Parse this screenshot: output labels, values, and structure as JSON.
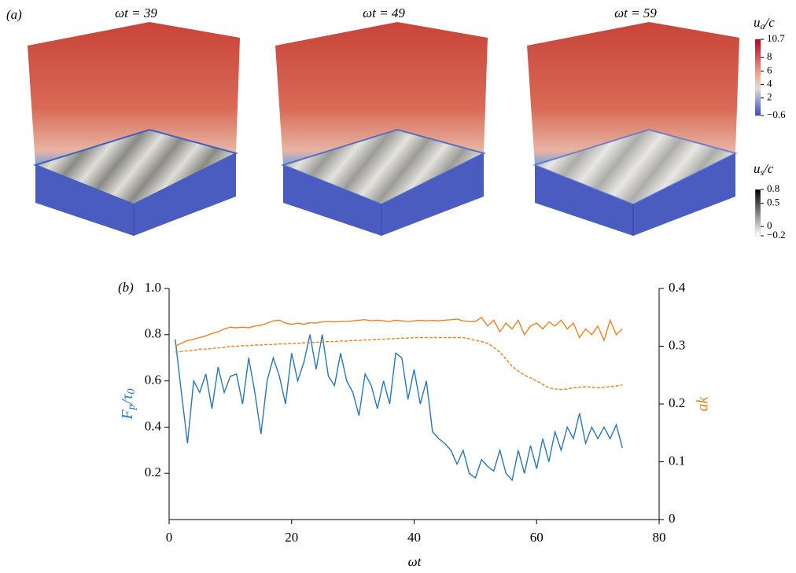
{
  "panel_a": {
    "label": "(a)",
    "titles": [
      "ωt = 39",
      "ωt = 49",
      "ωt = 59"
    ],
    "colorbar_air": {
      "label": {
        "main": "u",
        "sub": "a",
        "rest": "/c"
      },
      "lim": [
        -0.6,
        10.7
      ],
      "ticks": [
        {
          "value": 10.7,
          "label": "10.7"
        },
        8,
        6,
        4,
        2,
        {
          "value": -0.6,
          "label": "−0.6"
        }
      ]
    },
    "colorbar_surface": {
      "label": {
        "main": "u",
        "sub": "s",
        "rest": "/c"
      },
      "lim": [
        -0.2,
        0.8
      ],
      "ticks": [
        0.8,
        0.5,
        0,
        {
          "value": -0.2,
          "label": "−0.2"
        }
      ]
    }
  },
  "chart_data": {
    "type": "line",
    "panel_label": "(b)",
    "xlabel": "ωt",
    "ylabel": {
      "main": "F",
      "sub": "p",
      "rest": "/τ",
      "sub2": "0"
    },
    "y2label": "ak",
    "xlim": [
      0,
      80
    ],
    "xticks": [
      0,
      20,
      40,
      60,
      80
    ],
    "ylim": [
      0,
      1
    ],
    "yticks": [
      0.2,
      0.4,
      0.6,
      0.8,
      {
        "value": 1,
        "label": "1.0"
      }
    ],
    "y2lim": [
      0,
      0.4
    ],
    "y2ticks": [
      0,
      0.1,
      0.2,
      0.3,
      0.4
    ],
    "x": [
      1,
      2,
      3,
      4,
      5,
      6,
      7,
      8,
      9,
      10,
      11,
      12,
      13,
      14,
      15,
      16,
      17,
      18,
      19,
      20,
      21,
      22,
      23,
      24,
      25,
      26,
      27,
      28,
      29,
      30,
      31,
      32,
      33,
      34,
      35,
      36,
      37,
      38,
      39,
      40,
      41,
      42,
      43,
      44,
      45,
      46,
      47,
      48,
      49,
      50,
      51,
      52,
      53,
      54,
      55,
      56,
      57,
      58,
      59,
      60,
      61,
      62,
      63,
      64,
      65,
      66,
      67,
      68,
      69,
      70,
      71,
      72,
      73,
      74
    ],
    "series": [
      {
        "color": "#2878b5",
        "values": [
          0.78,
          0.55,
          0.33,
          0.6,
          0.55,
          0.63,
          0.48,
          0.66,
          0.55,
          0.62,
          0.63,
          0.5,
          0.7,
          0.55,
          0.37,
          0.6,
          0.7,
          0.62,
          0.5,
          0.72,
          0.6,
          0.68,
          0.8,
          0.65,
          0.8,
          0.62,
          0.58,
          0.72,
          0.6,
          0.55,
          0.45,
          0.63,
          0.58,
          0.48,
          0.6,
          0.5,
          0.72,
          0.7,
          0.52,
          0.65,
          0.5,
          0.6,
          0.38,
          0.35,
          0.33,
          0.3,
          0.24,
          0.3,
          0.2,
          0.18,
          0.26,
          0.23,
          0.21,
          0.3,
          0.2,
          0.17,
          0.3,
          0.2,
          0.32,
          0.22,
          0.35,
          0.25,
          0.38,
          0.3,
          0.4,
          0.35,
          0.46,
          0.33,
          0.4,
          0.35,
          0.4,
          0.35,
          0.41,
          0.31
        ]
      },
      {
        "color": "#f08020",
        "axis": "y2",
        "values": [
          0.3,
          0.305,
          0.31,
          0.312,
          0.315,
          0.318,
          0.322,
          0.325,
          0.33,
          0.333,
          0.332,
          0.333,
          0.332,
          0.335,
          0.336,
          0.34,
          0.344,
          0.345,
          0.34,
          0.338,
          0.34,
          0.338,
          0.341,
          0.34,
          0.342,
          0.343,
          0.342,
          0.343,
          0.343,
          0.344,
          0.345,
          0.346,
          0.344,
          0.345,
          0.344,
          0.343,
          0.345,
          0.344,
          0.343,
          0.344,
          0.345,
          0.344,
          0.345,
          0.344,
          0.345,
          0.346,
          0.347,
          0.344,
          0.343,
          0.343,
          0.35,
          0.335,
          0.345,
          0.325,
          0.34,
          0.33,
          0.345,
          0.32,
          0.335,
          0.34,
          0.33,
          0.342,
          0.335,
          0.345,
          0.33,
          0.34,
          0.315,
          0.33,
          0.32,
          0.335,
          0.31,
          0.345,
          0.32,
          0.33
        ]
      },
      {
        "color": "#f08020",
        "axis": "y2",
        "dash": true,
        "values": [
          0.29,
          0.291,
          0.292,
          0.293,
          0.295,
          0.295,
          0.296,
          0.297,
          0.298,
          0.3,
          0.3,
          0.301,
          0.301,
          0.302,
          0.302,
          0.303,
          0.303,
          0.304,
          0.304,
          0.305,
          0.305,
          0.306,
          0.306,
          0.307,
          0.307,
          0.308,
          0.308,
          0.309,
          0.309,
          0.31,
          0.31,
          0.311,
          0.311,
          0.312,
          0.312,
          0.313,
          0.313,
          0.314,
          0.314,
          0.315,
          0.315,
          0.315,
          0.315,
          0.315,
          0.315,
          0.315,
          0.315,
          0.315,
          0.313,
          0.31,
          0.308,
          0.305,
          0.298,
          0.29,
          0.278,
          0.265,
          0.257,
          0.25,
          0.245,
          0.24,
          0.234,
          0.228,
          0.226,
          0.225,
          0.226,
          0.228,
          0.229,
          0.23,
          0.229,
          0.228,
          0.229,
          0.23,
          0.231,
          0.233
        ]
      }
    ]
  }
}
